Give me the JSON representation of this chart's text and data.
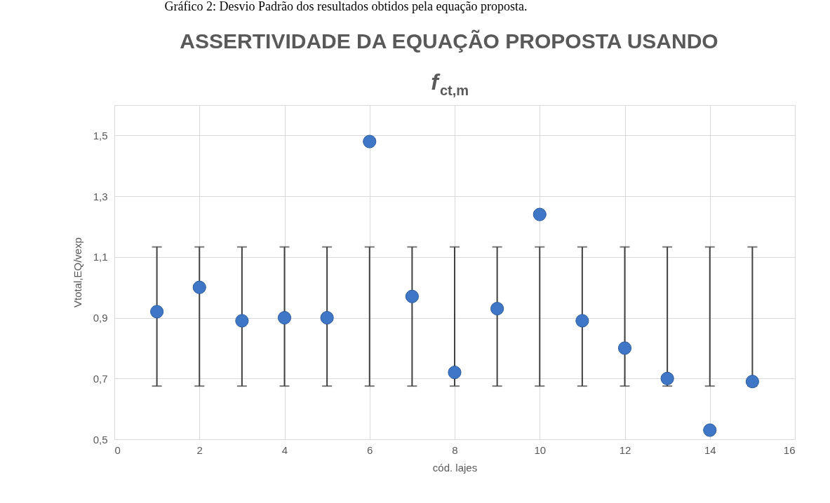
{
  "chart_data": {
    "type": "scatter",
    "title": "ASSERTIVIDADE DA EQUAÇÃO PROPOSTA USANDO f$_{ct,m}$",
    "annotations": [
      "Gráfico 2: Desvio Padrão dos resultados obtidos pela equação proposta."
    ],
    "xlabel": "cód. lajes",
    "ylabel": "Vtotal,EQ/vexp",
    "x": [
      1,
      2,
      3,
      4,
      5,
      6,
      7,
      8,
      9,
      10,
      11,
      12,
      13,
      14,
      15
    ],
    "series": [
      {
        "color": "#3f77c6",
        "values": [
          0.92,
          1.0,
          0.89,
          0.9,
          0.9,
          1.48,
          0.97,
          0.72,
          0.93,
          1.24,
          0.89,
          0.8,
          0.7,
          0.53,
          0.69
        ],
        "errors": [
          [
            0.675,
            1.133
          ],
          [
            0.675,
            1.133
          ],
          [
            0.675,
            1.133
          ],
          [
            0.675,
            1.133
          ],
          [
            0.675,
            1.133
          ],
          [
            0.675,
            1.133
          ],
          [
            0.675,
            1.133
          ],
          [
            0.675,
            1.133
          ],
          [
            0.675,
            1.133
          ],
          [
            0.675,
            1.133
          ],
          [
            0.675,
            1.133
          ],
          [
            0.675,
            1.133
          ],
          [
            0.675,
            1.133
          ],
          [
            0.675,
            1.133
          ],
          [
            0.675,
            1.133
          ]
        ]
      }
    ],
    "xlim": [
      0,
      16
    ],
    "xticks": [
      0,
      2,
      4,
      6,
      8,
      10,
      12,
      14,
      16
    ],
    "ylim": [
      0.5,
      1.6
    ],
    "yticks": [
      {
        "value": 0.5,
        "label": "0,5"
      },
      {
        "value": 0.7,
        "label": "0,7"
      },
      {
        "value": 0.9,
        "label": "0,9"
      },
      {
        "value": 1.1,
        "label": "1,1"
      },
      {
        "value": 1.3,
        "label": "1,3"
      },
      {
        "value": 1.5,
        "label": "1,5"
      }
    ],
    "grid": true,
    "marker": "circle"
  }
}
